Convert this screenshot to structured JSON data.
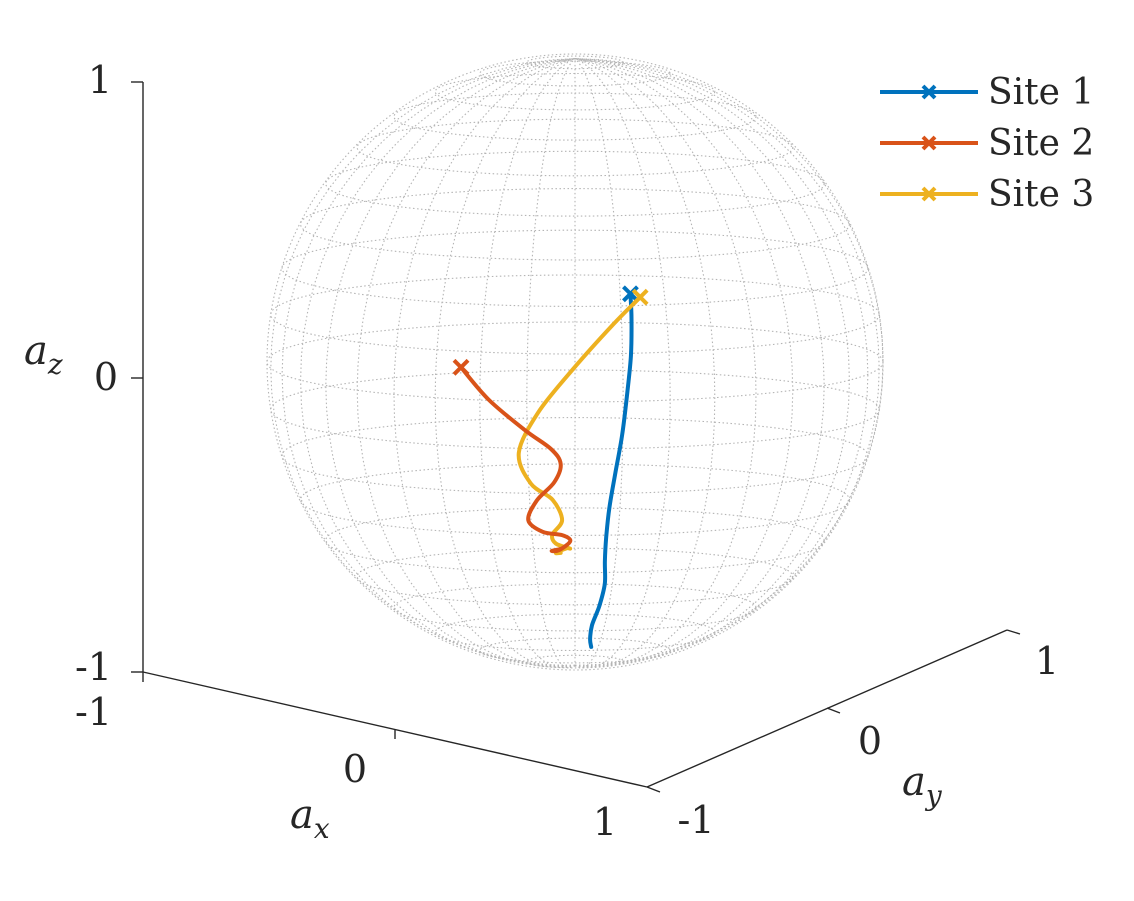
{
  "chart_data": {
    "type": "line",
    "projection": "3d",
    "title": "",
    "xlabel": "a",
    "xlabel_sub": "x",
    "ylabel": "a",
    "ylabel_sub": "y",
    "zlabel": "a",
    "zlabel_sub": "z",
    "xlim": [
      -1,
      1
    ],
    "ylim": [
      -1,
      1
    ],
    "zlim": [
      -1,
      1
    ],
    "x_ticks": [
      "-1",
      "0",
      "1"
    ],
    "y_ticks": [
      "-1",
      "0",
      "1"
    ],
    "z_ticks": [
      "-1",
      "0",
      "1"
    ],
    "grid": false,
    "background_surface": "unit sphere wireframe",
    "legend": {
      "placement": "top-right",
      "entries": [
        "Site 1",
        "Site 2",
        "Site 3"
      ]
    },
    "series": [
      {
        "name": "Site 1",
        "color": "#0072BD",
        "marker_at_start": "x",
        "points": [
          [
            -0.45,
            0.0,
            0.12
          ],
          [
            -0.43,
            0.02,
            0.04
          ],
          [
            -0.41,
            0.03,
            -0.08
          ],
          [
            -0.38,
            0.03,
            -0.2
          ],
          [
            -0.34,
            0.03,
            -0.33
          ],
          [
            -0.3,
            0.02,
            -0.45
          ],
          [
            -0.25,
            0.02,
            -0.56
          ],
          [
            -0.21,
            0.03,
            -0.65
          ],
          [
            -0.17,
            0.05,
            -0.72
          ],
          [
            -0.14,
            0.07,
            -0.79
          ],
          [
            -0.11,
            0.06,
            -0.86
          ],
          [
            -0.08,
            0.04,
            -0.92
          ],
          [
            -0.05,
            0.05,
            -0.96
          ],
          [
            -0.03,
            0.07,
            -0.98
          ]
        ]
      },
      {
        "name": "Site 2",
        "color": "#D95319",
        "marker_at_start": "x",
        "points": [
          [
            0.2,
            -0.5,
            -0.04
          ],
          [
            0.18,
            -0.36,
            -0.14
          ],
          [
            0.12,
            -0.2,
            -0.24
          ],
          [
            0.05,
            -0.1,
            -0.31
          ],
          [
            0.0,
            -0.08,
            -0.37
          ],
          [
            -0.02,
            -0.13,
            -0.44
          ],
          [
            0.02,
            -0.2,
            -0.5
          ],
          [
            0.06,
            -0.22,
            -0.56
          ],
          [
            0.03,
            -0.16,
            -0.6
          ],
          [
            -0.04,
            -0.1,
            -0.62
          ],
          [
            -0.02,
            -0.04,
            -0.63
          ],
          [
            0.04,
            -0.06,
            -0.65
          ],
          [
            0.03,
            -0.11,
            -0.66
          ],
          [
            -0.01,
            -0.09,
            -0.66
          ]
        ]
      },
      {
        "name": "Site 3",
        "color": "#EDB120",
        "marker_at_start": "x",
        "points": [
          [
            -0.5,
            0.02,
            0.1
          ],
          [
            -0.39,
            -0.06,
            0.02
          ],
          [
            -0.22,
            -0.16,
            -0.1
          ],
          [
            -0.05,
            -0.24,
            -0.22
          ],
          [
            0.05,
            -0.28,
            -0.34
          ],
          [
            0.04,
            -0.22,
            -0.44
          ],
          [
            -0.02,
            -0.14,
            -0.5
          ],
          [
            -0.04,
            -0.1,
            -0.57
          ],
          [
            0.01,
            -0.12,
            -0.61
          ],
          [
            0.04,
            -0.08,
            -0.63
          ],
          [
            0.0,
            -0.03,
            -0.65
          ],
          [
            -0.03,
            -0.07,
            -0.66
          ],
          [
            0.01,
            -0.1,
            -0.67
          ],
          [
            0.0,
            -0.08,
            -0.67
          ]
        ]
      }
    ]
  }
}
